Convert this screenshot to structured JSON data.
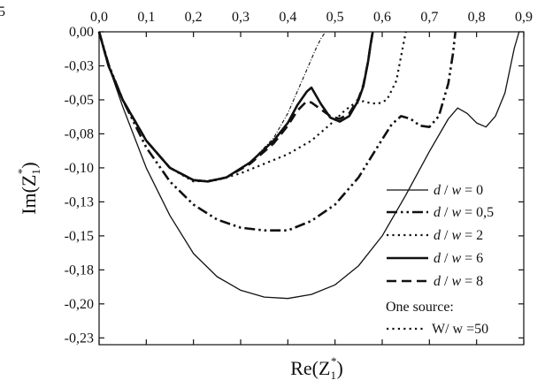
{
  "chart_data": {
    "type": "line",
    "xlabel_main": "Re(Z",
    "xlabel_sub": "1",
    "xlabel_sup": "*",
    "xlabel_end": ")",
    "ylabel_main": "Im(Z",
    "ylabel_sub": "1",
    "ylabel_sup": "*",
    "ylabel_end": ")",
    "xlim": [
      0.0,
      0.9
    ],
    "ylim": [
      -0.23,
      0.0
    ],
    "x_ticks": [
      "0,0",
      "0,1",
      "0,2",
      "0,3",
      "0,4",
      "0,5",
      "0,6",
      "0,7",
      "0,8",
      "0,9"
    ],
    "x_tick_values": [
      0.0,
      0.1,
      0.2,
      0.3,
      0.4,
      0.5,
      0.6,
      0.7,
      0.8,
      0.9
    ],
    "y_ticks": [
      "0,00",
      "-0,03",
      "-0,05",
      "-0,08",
      "-0,10",
      "-0,13",
      "-0,15",
      "-0,18",
      "-0,20",
      "-0,23"
    ],
    "y_tick_values": [
      0.0,
      -0.025,
      -0.05,
      -0.075,
      -0.1,
      -0.125,
      -0.15,
      -0.175,
      -0.2,
      -0.225
    ],
    "partial_label": "5",
    "legend_placement": "bottom-right",
    "legend_heading": "One source:",
    "series": [
      {
        "name": "d / w = 0",
        "legend_parts": [
          "d",
          " / ",
          "w",
          " = 0"
        ],
        "style": "solid-thin",
        "x": [
          0.0,
          0.02,
          0.05,
          0.1,
          0.15,
          0.2,
          0.25,
          0.3,
          0.35,
          0.4,
          0.45,
          0.5,
          0.55,
          0.6,
          0.65,
          0.7,
          0.74,
          0.76,
          0.78,
          0.8,
          0.82,
          0.84,
          0.86,
          0.88,
          0.89
        ],
        "y": [
          0.0,
          -0.025,
          -0.055,
          -0.1,
          -0.135,
          -0.163,
          -0.18,
          -0.19,
          -0.195,
          -0.196,
          -0.193,
          -0.186,
          -0.172,
          -0.15,
          -0.12,
          -0.088,
          -0.064,
          -0.056,
          -0.06,
          -0.067,
          -0.07,
          -0.062,
          -0.045,
          -0.012,
          0.0
        ]
      },
      {
        "name": "d / w = 0,5",
        "legend_parts": [
          "d",
          " / ",
          "w",
          " = 0,5"
        ],
        "style": "dash-dot-dot",
        "x": [
          0.0,
          0.02,
          0.05,
          0.1,
          0.15,
          0.2,
          0.25,
          0.3,
          0.35,
          0.4,
          0.45,
          0.5,
          0.55,
          0.6,
          0.62,
          0.64,
          0.66,
          0.68,
          0.7,
          0.72,
          0.74,
          0.75,
          0.755
        ],
        "y": [
          0.0,
          -0.024,
          -0.05,
          -0.085,
          -0.11,
          -0.127,
          -0.138,
          -0.144,
          -0.146,
          -0.146,
          -0.139,
          -0.127,
          -0.107,
          -0.079,
          -0.068,
          -0.062,
          -0.064,
          -0.069,
          -0.07,
          -0.062,
          -0.038,
          -0.016,
          0.0
        ]
      },
      {
        "name": "d / w = 2",
        "legend_parts": [
          "d",
          " / ",
          "w",
          " = 2"
        ],
        "style": "dotted",
        "x": [
          0.0,
          0.02,
          0.05,
          0.1,
          0.15,
          0.2,
          0.25,
          0.3,
          0.35,
          0.4,
          0.45,
          0.5,
          0.52,
          0.54,
          0.56,
          0.57,
          0.59,
          0.61,
          0.63,
          0.64,
          0.65
        ],
        "y": [
          0.0,
          -0.025,
          -0.05,
          -0.08,
          -0.1,
          -0.11,
          -0.109,
          -0.104,
          -0.097,
          -0.09,
          -0.08,
          -0.065,
          -0.058,
          -0.053,
          -0.051,
          -0.052,
          -0.053,
          -0.05,
          -0.036,
          -0.018,
          0.0
        ]
      },
      {
        "name": "d / w = 6",
        "legend_parts": [
          "d",
          " / ",
          "w",
          " = 6"
        ],
        "style": "solid-thick",
        "x": [
          0.0,
          0.02,
          0.05,
          0.1,
          0.15,
          0.2,
          0.23,
          0.27,
          0.32,
          0.37,
          0.4,
          0.42,
          0.44,
          0.45,
          0.47,
          0.49,
          0.51,
          0.53,
          0.55,
          0.56,
          0.57,
          0.575,
          0.58
        ],
        "y": [
          0.0,
          -0.025,
          -0.05,
          -0.08,
          -0.1,
          -0.109,
          -0.11,
          -0.107,
          -0.096,
          -0.08,
          -0.067,
          -0.054,
          -0.044,
          -0.041,
          -0.053,
          -0.063,
          -0.066,
          -0.062,
          -0.05,
          -0.04,
          -0.022,
          -0.01,
          0.0
        ]
      },
      {
        "name": "d / w = 8",
        "legend_parts": [
          "d",
          " / ",
          "w",
          " = 8"
        ],
        "style": "dashed",
        "x": [
          0.0,
          0.02,
          0.05,
          0.1,
          0.15,
          0.2,
          0.23,
          0.27,
          0.32,
          0.37,
          0.4,
          0.42,
          0.44,
          0.45,
          0.47,
          0.49,
          0.51,
          0.53,
          0.55,
          0.56,
          0.57,
          0.575,
          0.58
        ],
        "y": [
          0.0,
          -0.025,
          -0.05,
          -0.08,
          -0.1,
          -0.109,
          -0.11,
          -0.107,
          -0.097,
          -0.082,
          -0.069,
          -0.058,
          -0.051,
          -0.052,
          -0.057,
          -0.062,
          -0.064,
          -0.06,
          -0.049,
          -0.039,
          -0.022,
          -0.01,
          0.0
        ]
      },
      {
        "name": "W/ w =50",
        "legend_parts": [
          "W/ w =50"
        ],
        "style": "dash-dot-fine",
        "x": [
          0.0,
          0.02,
          0.05,
          0.1,
          0.15,
          0.2,
          0.23,
          0.27,
          0.32,
          0.37,
          0.4,
          0.42,
          0.44,
          0.46,
          0.47,
          0.48
        ],
        "y": [
          0.0,
          -0.025,
          -0.05,
          -0.08,
          -0.1,
          -0.109,
          -0.11,
          -0.107,
          -0.096,
          -0.078,
          -0.06,
          -0.044,
          -0.028,
          -0.012,
          -0.005,
          0.0
        ]
      }
    ]
  }
}
